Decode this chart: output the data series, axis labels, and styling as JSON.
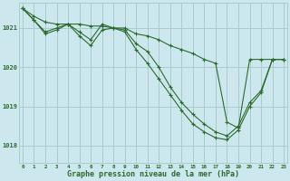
{
  "background_color": "#cce8ee",
  "grid_color": "#aacccc",
  "line_color": "#2d6a2d",
  "marker": "+",
  "title": "Graphe pression niveau de la mer (hPa)",
  "xlabel_ticks": [
    0,
    1,
    2,
    3,
    4,
    5,
    6,
    7,
    8,
    9,
    10,
    11,
    12,
    13,
    14,
    15,
    16,
    17,
    18,
    19,
    20,
    21,
    22,
    23
  ],
  "yticks": [
    1018,
    1019,
    1020,
    1021
  ],
  "ylim": [
    1017.55,
    1021.65
  ],
  "xlim": [
    -0.3,
    23.3
  ],
  "series": [
    [
      1021.5,
      1021.3,
      1021.15,
      1021.1,
      1021.1,
      1021.1,
      1021.05,
      1021.05,
      1021.0,
      1021.0,
      1020.85,
      1020.8,
      1020.7,
      1020.55,
      1020.45,
      1020.35,
      1020.2,
      1020.1,
      1018.6,
      1018.45,
      1020.2,
      1020.2,
      1020.2,
      1020.2
    ],
    [
      1021.5,
      1021.2,
      1020.9,
      1021.0,
      1021.1,
      1020.9,
      1020.7,
      1021.1,
      1021.0,
      1020.95,
      1020.6,
      1020.4,
      1020.0,
      1019.5,
      1019.1,
      1018.8,
      1018.55,
      1018.35,
      1018.25,
      1018.5,
      1019.1,
      1019.4,
      1020.2,
      1020.2
    ],
    [
      1021.5,
      1021.2,
      1020.85,
      1020.95,
      1021.1,
      1020.8,
      1020.55,
      1020.95,
      1021.0,
      1020.9,
      1020.45,
      1020.1,
      1019.7,
      1019.3,
      1018.9,
      1018.55,
      1018.35,
      1018.2,
      1018.15,
      1018.4,
      1019.0,
      1019.35,
      1020.2,
      1020.2
    ]
  ]
}
